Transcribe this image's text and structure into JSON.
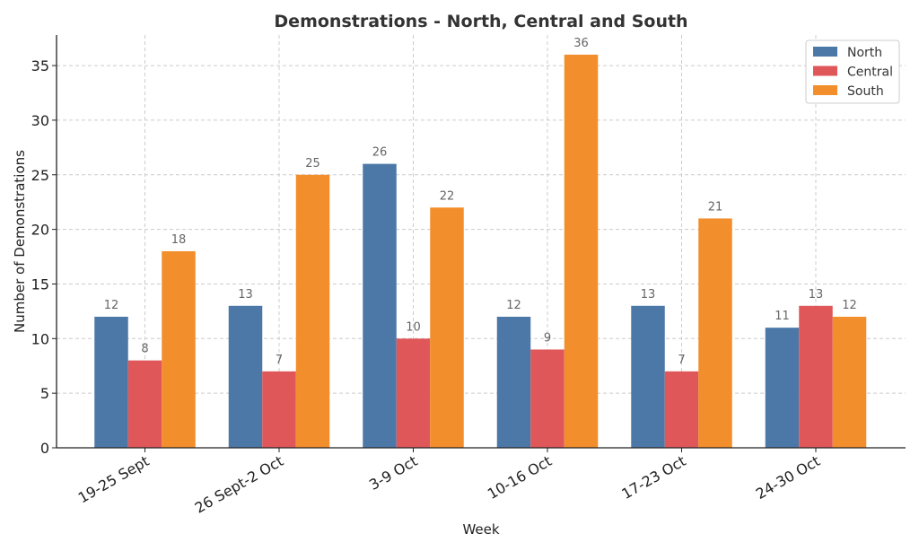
{
  "chart_data": {
    "type": "bar",
    "title": "Demonstrations - North, Central and South",
    "xlabel": "Week",
    "ylabel": "Number of Demonstrations",
    "categories": [
      "19-25 Sept",
      "26 Sept-2 Oct",
      "3-9 Oct",
      "10-16 Oct",
      "17-23 Oct",
      "24-30 Oct"
    ],
    "series": [
      {
        "name": "North",
        "color": "#4c78a8",
        "values": [
          12,
          13,
          26,
          12,
          13,
          11
        ]
      },
      {
        "name": "Central",
        "color": "#e05759",
        "values": [
          8,
          7,
          10,
          9,
          7,
          13
        ]
      },
      {
        "name": "South",
        "color": "#f28e2b",
        "values": [
          18,
          25,
          22,
          36,
          21,
          12
        ]
      }
    ],
    "ylim": [
      0,
      37.8
    ],
    "yticks": [
      0,
      5,
      10,
      15,
      20,
      25,
      30,
      35
    ],
    "grid": true,
    "legend_position": "top-right"
  }
}
